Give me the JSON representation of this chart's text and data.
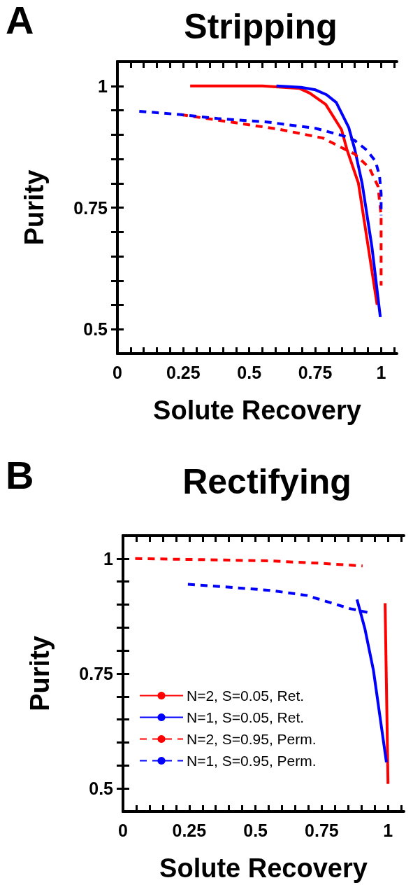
{
  "chart_data": [
    {
      "type": "line",
      "title": "Stripping",
      "xlabel": "Solute Recovery",
      "ylabel": "Purity",
      "annotations": [
        "A"
      ],
      "xlim": [
        0,
        1.06
      ],
      "ylim": [
        0.45,
        1.05
      ],
      "xticks": [
        0,
        {
          "value": 0.05,
          "label": null
        },
        {
          "value": 0.1,
          "label": null
        },
        {
          "value": 0.15,
          "label": null
        },
        {
          "value": 0.2,
          "label": null
        },
        0.25,
        {
          "value": 0.3,
          "label": null
        },
        {
          "value": 0.35,
          "label": null
        },
        {
          "value": 0.4,
          "label": null
        },
        {
          "value": 0.45,
          "label": null
        },
        0.5,
        {
          "value": 0.55,
          "label": null
        },
        {
          "value": 0.6,
          "label": null
        },
        {
          "value": 0.65,
          "label": null
        },
        {
          "value": 0.7,
          "label": null
        },
        0.75,
        {
          "value": 0.8,
          "label": null
        },
        {
          "value": 0.85,
          "label": null
        },
        {
          "value": 0.9,
          "label": null
        },
        {
          "value": 0.95,
          "label": null
        },
        1,
        {
          "value": 1.05,
          "label": null
        }
      ],
      "yticks": [
        0.5,
        {
          "value": 0.55,
          "label": null
        },
        {
          "value": 0.6,
          "label": null
        },
        {
          "value": 0.65,
          "label": null
        },
        {
          "value": 0.7,
          "label": null
        },
        0.75,
        {
          "value": 0.8,
          "label": null
        },
        {
          "value": 0.85,
          "label": null
        },
        {
          "value": 0.9,
          "label": null
        },
        {
          "value": 0.95,
          "label": null
        },
        1
      ],
      "grid": false,
      "legend": false,
      "marker": "none",
      "series": [
        {
          "color": "#ff0000",
          "line_style": "solid",
          "x": [
            0.276,
            0.55,
            0.69,
            0.73,
            0.79,
            0.85,
            0.87,
            0.914,
            0.985
          ],
          "values": [
            1,
            1,
            0.995,
            0.985,
            0.962,
            0.91,
            0.87,
            0.8,
            0.55
          ]
        },
        {
          "color": "#0000ff",
          "line_style": "solid",
          "x": [
            0.603,
            0.696,
            0.751,
            0.793,
            0.83,
            0.877,
            0.9,
            0.928,
            0.965,
            0.997
          ],
          "values": [
            1,
            0.997,
            0.992,
            0.982,
            0.966,
            0.915,
            0.87,
            0.8,
            0.67,
            0.525
          ]
        },
        {
          "color": "#ff0000",
          "line_style": "dashed",
          "x": [
            0.241,
            0.427,
            0.612,
            0.779,
            0.844,
            0.9,
            0.955,
            0.988,
            1,
            1
          ],
          "values": [
            0.941,
            0.926,
            0.911,
            0.893,
            0.875,
            0.86,
            0.832,
            0.794,
            0.734,
            0.59
          ]
        },
        {
          "color": "#0000ff",
          "line_style": "dashed",
          "x": [
            0.083,
            0.241,
            0.38,
            0.566,
            0.751,
            0.853,
            0.9,
            0.946,
            0.979,
            0.994,
            1,
            1
          ],
          "values": [
            0.948,
            0.941,
            0.933,
            0.926,
            0.913,
            0.898,
            0.888,
            0.868,
            0.845,
            0.815,
            0.779,
            0.734
          ]
        }
      ]
    },
    {
      "type": "line",
      "title": "Rectifying",
      "xlabel": "Solute Recovery",
      "ylabel": "Purity",
      "annotations": [
        "B"
      ],
      "xlim": [
        0,
        1.06
      ],
      "ylim": [
        0.45,
        1.05
      ],
      "xticks": [
        0,
        {
          "value": 0.05,
          "label": null
        },
        {
          "value": 0.1,
          "label": null
        },
        {
          "value": 0.15,
          "label": null
        },
        {
          "value": 0.2,
          "label": null
        },
        0.25,
        {
          "value": 0.3,
          "label": null
        },
        {
          "value": 0.35,
          "label": null
        },
        {
          "value": 0.4,
          "label": null
        },
        {
          "value": 0.45,
          "label": null
        },
        0.5,
        {
          "value": 0.55,
          "label": null
        },
        {
          "value": 0.6,
          "label": null
        },
        {
          "value": 0.65,
          "label": null
        },
        {
          "value": 0.7,
          "label": null
        },
        0.75,
        {
          "value": 0.8,
          "label": null
        },
        {
          "value": 0.85,
          "label": null
        },
        {
          "value": 0.9,
          "label": null
        },
        {
          "value": 0.95,
          "label": null
        },
        1,
        {
          "value": 1.05,
          "label": null
        }
      ],
      "yticks": [
        0.5,
        {
          "value": 0.55,
          "label": null
        },
        {
          "value": 0.6,
          "label": null
        },
        {
          "value": 0.65,
          "label": null
        },
        {
          "value": 0.7,
          "label": null
        },
        0.75,
        {
          "value": 0.8,
          "label": null
        },
        {
          "value": 0.85,
          "label": null
        },
        {
          "value": 0.9,
          "label": null
        },
        {
          "value": 0.95,
          "label": null
        },
        1
      ],
      "grid": false,
      "legend": "bottom left",
      "marker": "none",
      "series": [
        {
          "name": "N=2, S=0.05, Ret.",
          "color": "#ff0000",
          "line_style": "solid",
          "x": [
            0.989,
            1
          ],
          "values": [
            0.903,
            0.51
          ]
        },
        {
          "name": "N=1, S=0.05, Ret.",
          "color": "#0000ff",
          "line_style": "solid",
          "x": [
            0.883,
            0.913,
            0.945,
            0.994
          ],
          "values": [
            0.911,
            0.847,
            0.757,
            0.557
          ]
        },
        {
          "name": "N=2, S=0.95, Perm.",
          "color": "#ff0000",
          "line_style": "dashed",
          "x": [
            0.046,
            0.28,
            0.555,
            0.739,
            0.904
          ],
          "values": [
            1,
            0.998,
            0.995,
            0.99,
            0.984
          ]
        },
        {
          "name": "N=1, S=0.95, Perm.",
          "color": "#0000ff",
          "line_style": "dashed",
          "x": [
            0.245,
            0.372,
            0.555,
            0.693,
            0.784,
            0.858,
            0.922
          ],
          "values": [
            0.944,
            0.939,
            0.931,
            0.92,
            0.904,
            0.891,
            0.883
          ]
        }
      ]
    }
  ]
}
